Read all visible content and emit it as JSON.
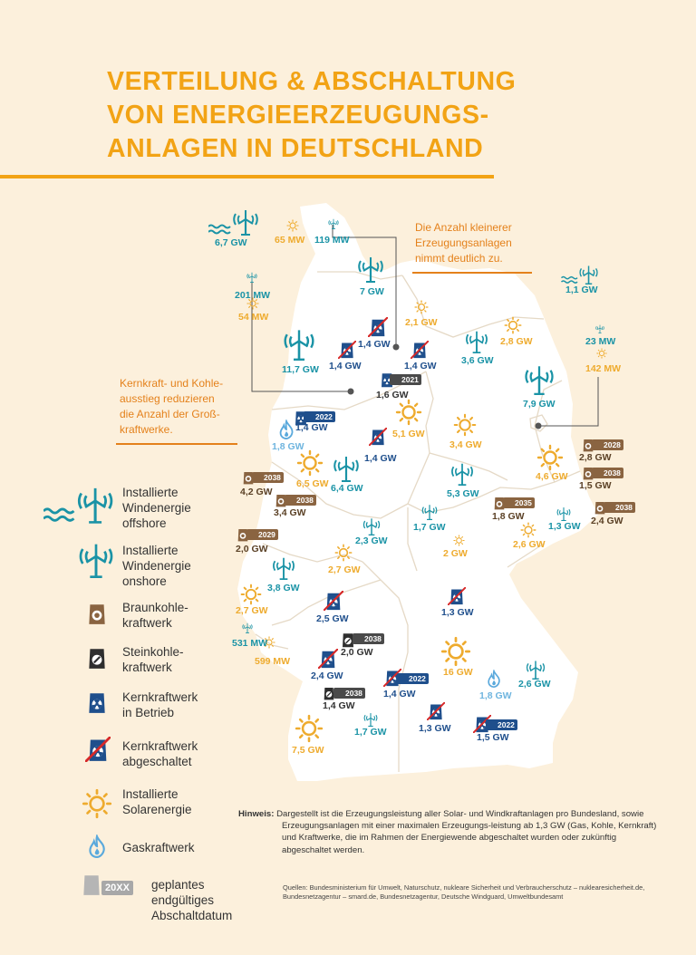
{
  "title_lines": [
    "VERTEILUNG & ABSCHALTUNG",
    "VON ENERGIEERZEUGUNGS-",
    "ANLAGEN IN DEUTSCHLAND"
  ],
  "colors": {
    "accent": "#f2a315",
    "wind": "#1a93a6",
    "solar": "#eeab2e",
    "coal_brown": "#8a6441",
    "coal_hard": "#4a4a4a",
    "nuclear": "#1f4f8c",
    "gas": "#6fb5df",
    "map_fill": "#ffffff",
    "background": "#fcf0dc",
    "note": "#e4811b"
  },
  "notes": {
    "small_plants": [
      "Die Anzahl kleinerer",
      "Erzeugungsanlagen",
      "nimmt deutlich zu."
    ],
    "phaseout": [
      "Kernkraft- und Kohle-",
      "ausstieg reduzieren",
      "die Anzahl der Groß-",
      "kraftwerke."
    ]
  },
  "map_labels": {
    "nord_offshore": "6,7 GW",
    "nord_solar_sea": "65 MW",
    "nord_wind_sea": "119 MW",
    "sh_onshore": "7 GW",
    "hb_wind": "201 MW",
    "hb_solar": "54 MW",
    "mv_solar": "2,1 GW",
    "ostsee_offshore": "1,1 GW",
    "nds_nuc_off_1": "1,4 GW",
    "nds_nuc_off_2": "1,4 GW",
    "nds_nuc_off_3": "1,4 GW",
    "mv_onshore": "3,6 GW",
    "mv_solar2": "2,8 GW",
    "be_wind": "23 MW",
    "be_solar": "142 MW",
    "nds_onshore": "11,7 GW",
    "nds_nuc_2021": "1,6 GW",
    "bb_onshore": "7,9 GW",
    "nrw_nuc_2022": "1,4 GW",
    "nds_solar": "5,1 GW",
    "st_onshore": "3,4 GW",
    "nrw_gas": "1,8 GW",
    "nds_nuc_off_4": "1,4 GW",
    "bb_coal_2028": "2,8 GW",
    "bb_solar": "4,6 GW",
    "bb_coal_2038a": "1,5 GW",
    "nrw_coal_2038a": "4,2 GW",
    "nrw_solar": "6,5 GW",
    "nrw_onshore": "6,4 GW",
    "st_onshore2": "5,3 GW",
    "nrw_coal_2038b": "3,4 GW",
    "sn_coal_2035": "1,8 GW",
    "bb_coal_2038b": "2,4 GW",
    "th_onshore": "1,7 GW",
    "sn_onshore": "1,3 GW",
    "he_onshore": "2,3 GW",
    "nrw_coal_2029": "2,0 GW",
    "th_solar": "2 GW",
    "sn_solar": "2,6 GW",
    "he_solar": "2,7 GW",
    "rp_onshore": "3,8 GW",
    "rp_solar": "2,7 GW",
    "he_nuc_off": "2,5 GW",
    "by_nuc_off_n": "1,3 GW",
    "sl_wind": "531 MW",
    "sl_solar": "599 MW",
    "bw_coal_2038a": "2,0 GW",
    "by_solar": "16 GW",
    "bw_nuc_off": "2,4 GW",
    "bw_nuc_2022": "1,4 GW",
    "by_gas": "1,8 GW",
    "by_onshore": "2,6 GW",
    "bw_coal_2038b": "1,4 GW",
    "bw_onshore": "1,7 GW",
    "by_nuc_off_s": "1,3 GW",
    "by_nuc_2022": "1,5 GW",
    "bw_solar": "7,5 GW"
  },
  "badges": {
    "b2021": "2021",
    "b2022a": "2022",
    "b2028": "2028",
    "b2038a": "2038",
    "b2038b": "2038",
    "b2038c": "2038",
    "b2038d": "2038",
    "b2035": "2035",
    "b2029": "2029",
    "b2038e": "2038",
    "b2022b": "2022",
    "b2038f": "2038",
    "b2022c": "2022"
  },
  "legend": {
    "offshore": "Installierte\nWindenergie\noffshore",
    "onshore": "Installierte\nWindenergie\nonshore",
    "brown_coal": "Braunkohle-\nkraftwerk",
    "hard_coal": "Steinkohle-\nkraftwerk",
    "nuclear_on": "Kernkraftwerk\nin Betrieb",
    "nuclear_off": "Kernkraftwerk\nabgeschaltet",
    "solar": "Installierte\nSolarenergie",
    "gas": "Gaskraftwerk",
    "shutdown": "geplantes\nendgültiges\nAbschaltdatum",
    "shutdown_badge": "20XX"
  },
  "hint": {
    "label": "Hinweis:",
    "text": "Dargestellt ist die Erzeugungsleistung aller Solar- und Windkraftanlagen pro Bundesland, sowie Erzeugungsanlagen mit einer maximalen Erzeugungs-leistung ab 1,3 GW (Gas, Kohle, Kernkraft) und Kraftwerke, die im Rahmen der Energiewende abgeschaltet wurden oder zukünftig abgeschaltet werden."
  },
  "sources": "Quellen: Bundesministerium für Umwelt, Naturschutz, nukleare Sicherheit und Verbraucherschutz – nuklearesicherheit.de, Bundesnetzagentur – smard.de, Bundesnetzagentur, Deutsche Windguard, Umweltbundesamt"
}
